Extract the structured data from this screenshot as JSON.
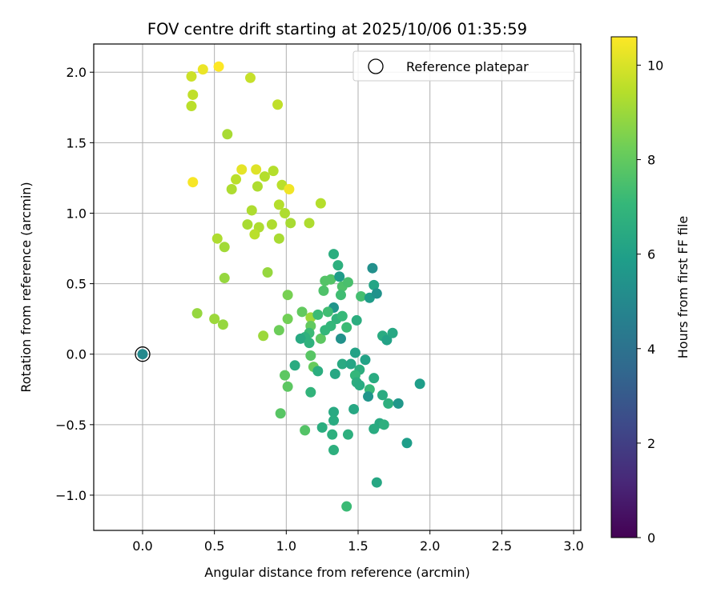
{
  "chart_data": {
    "type": "scatter",
    "title": "FOV centre drift starting at 2025/10/06 01:35:59",
    "xlabel": "Angular distance from reference (arcmin)",
    "ylabel": "Rotation from reference (arcmin)",
    "xlim": [
      -0.34,
      3.05
    ],
    "ylim": [
      -1.25,
      2.2
    ],
    "xticks": [
      0.0,
      0.5,
      1.0,
      1.5,
      2.0,
      2.5,
      3.0
    ],
    "xtick_labels": [
      "0.0",
      "0.5",
      "1.0",
      "1.5",
      "2.0",
      "2.5",
      "3.0"
    ],
    "yticks": [
      -1.0,
      -0.5,
      0.0,
      0.5,
      1.0,
      1.5,
      2.0
    ],
    "ytick_labels": [
      "−1.0",
      "−0.5",
      "0.0",
      "0.5",
      "1.0",
      "1.5",
      "2.0"
    ],
    "grid": true,
    "legend": {
      "placement": "top-right",
      "label": "Reference platepar"
    },
    "reference_point": {
      "x": 0.0,
      "y": 0.0,
      "hours": 5.0
    },
    "colorbar": {
      "label": "Hours from first FF file",
      "range": [
        0,
        10.6
      ],
      "ticks": [
        0,
        2,
        4,
        6,
        8,
        10
      ],
      "tick_labels": [
        "0",
        "2",
        "4",
        "6",
        "8",
        "10"
      ],
      "colormap": "viridis",
      "colors": [
        "#440154",
        "#482878",
        "#3e4989",
        "#31688e",
        "#26828e",
        "#1f9e89",
        "#35b779",
        "#6ece58",
        "#b5de2b",
        "#fde725"
      ]
    },
    "points": [
      {
        "x": 0.53,
        "y": 2.04,
        "h": 10.6
      },
      {
        "x": 0.42,
        "y": 2.02,
        "h": 10.3
      },
      {
        "x": 0.34,
        "y": 1.97,
        "h": 9.8
      },
      {
        "x": 0.75,
        "y": 1.96,
        "h": 9.7
      },
      {
        "x": 0.35,
        "y": 1.84,
        "h": 9.6
      },
      {
        "x": 0.34,
        "y": 1.76,
        "h": 9.5
      },
      {
        "x": 0.94,
        "y": 1.77,
        "h": 9.6
      },
      {
        "x": 0.59,
        "y": 1.56,
        "h": 9.2
      },
      {
        "x": 0.35,
        "y": 1.22,
        "h": 10.5
      },
      {
        "x": 0.69,
        "y": 1.31,
        "h": 10.2
      },
      {
        "x": 0.79,
        "y": 1.31,
        "h": 10.1
      },
      {
        "x": 0.91,
        "y": 1.3,
        "h": 9.4
      },
      {
        "x": 0.65,
        "y": 1.24,
        "h": 9.5
      },
      {
        "x": 0.85,
        "y": 1.26,
        "h": 9.4
      },
      {
        "x": 0.62,
        "y": 1.17,
        "h": 9.3
      },
      {
        "x": 0.8,
        "y": 1.19,
        "h": 9.3
      },
      {
        "x": 0.97,
        "y": 1.2,
        "h": 9.5
      },
      {
        "x": 1.02,
        "y": 1.17,
        "h": 10.4
      },
      {
        "x": 1.24,
        "y": 1.07,
        "h": 9.4
      },
      {
        "x": 0.95,
        "y": 1.06,
        "h": 9.4
      },
      {
        "x": 0.76,
        "y": 1.02,
        "h": 9.3
      },
      {
        "x": 0.99,
        "y": 1.0,
        "h": 9.3
      },
      {
        "x": 0.73,
        "y": 0.92,
        "h": 9.2
      },
      {
        "x": 0.81,
        "y": 0.9,
        "h": 9.3
      },
      {
        "x": 0.9,
        "y": 0.92,
        "h": 9.3
      },
      {
        "x": 1.03,
        "y": 0.93,
        "h": 9.2
      },
      {
        "x": 1.16,
        "y": 0.93,
        "h": 9.3
      },
      {
        "x": 0.78,
        "y": 0.85,
        "h": 9.5
      },
      {
        "x": 0.52,
        "y": 0.82,
        "h": 9.3
      },
      {
        "x": 0.95,
        "y": 0.82,
        "h": 9.2
      },
      {
        "x": 0.57,
        "y": 0.76,
        "h": 9.1
      },
      {
        "x": 0.87,
        "y": 0.58,
        "h": 8.9
      },
      {
        "x": 0.57,
        "y": 0.54,
        "h": 8.9
      },
      {
        "x": 0.38,
        "y": 0.29,
        "h": 8.9
      },
      {
        "x": 0.5,
        "y": 0.25,
        "h": 9.0
      },
      {
        "x": 0.56,
        "y": 0.21,
        "h": 8.9
      },
      {
        "x": 0.84,
        "y": 0.13,
        "h": 9.0
      },
      {
        "x": 1.17,
        "y": 0.26,
        "h": 9.0
      },
      {
        "x": 1.01,
        "y": 0.42,
        "h": 8.4
      },
      {
        "x": 1.01,
        "y": 0.25,
        "h": 8.3
      },
      {
        "x": 0.95,
        "y": 0.17,
        "h": 8.2
      },
      {
        "x": 1.11,
        "y": 0.3,
        "h": 8.0
      },
      {
        "x": 1.17,
        "y": 0.2,
        "h": 8.0
      },
      {
        "x": 1.24,
        "y": 0.11,
        "h": 7.9
      },
      {
        "x": 1.17,
        "y": -0.01,
        "h": 7.8
      },
      {
        "x": 1.19,
        "y": -0.09,
        "h": 8.1
      },
      {
        "x": 0.99,
        "y": -0.15,
        "h": 7.9
      },
      {
        "x": 1.01,
        "y": -0.23,
        "h": 7.9
      },
      {
        "x": 0.96,
        "y": -0.42,
        "h": 7.8
      },
      {
        "x": 1.13,
        "y": -0.54,
        "h": 7.7
      },
      {
        "x": 1.27,
        "y": 0.52,
        "h": 7.7
      },
      {
        "x": 1.31,
        "y": 0.53,
        "h": 7.7
      },
      {
        "x": 1.26,
        "y": 0.45,
        "h": 7.6
      },
      {
        "x": 1.39,
        "y": 0.48,
        "h": 7.6
      },
      {
        "x": 1.43,
        "y": 0.51,
        "h": 7.5
      },
      {
        "x": 1.52,
        "y": 0.41,
        "h": 7.4
      },
      {
        "x": 1.38,
        "y": 0.42,
        "h": 7.3
      },
      {
        "x": 1.36,
        "y": 0.63,
        "h": 6.7
      },
      {
        "x": 1.33,
        "y": 0.71,
        "h": 6.6
      },
      {
        "x": 1.37,
        "y": 0.55,
        "h": 5.8
      },
      {
        "x": 1.33,
        "y": 0.33,
        "h": 5.5
      },
      {
        "x": 1.29,
        "y": 0.3,
        "h": 7.3
      },
      {
        "x": 1.35,
        "y": 0.25,
        "h": 6.9
      },
      {
        "x": 1.39,
        "y": 0.27,
        "h": 7.1
      },
      {
        "x": 1.31,
        "y": 0.2,
        "h": 7.0
      },
      {
        "x": 1.27,
        "y": 0.17,
        "h": 7.0
      },
      {
        "x": 1.42,
        "y": 0.19,
        "h": 7.2
      },
      {
        "x": 1.49,
        "y": 0.24,
        "h": 6.6
      },
      {
        "x": 1.38,
        "y": 0.11,
        "h": 5.4
      },
      {
        "x": 1.22,
        "y": 0.28,
        "h": 7.2
      },
      {
        "x": 1.16,
        "y": 0.15,
        "h": 7.2
      },
      {
        "x": 1.13,
        "y": 0.12,
        "h": 6.8
      },
      {
        "x": 1.1,
        "y": 0.11,
        "h": 6.4
      },
      {
        "x": 1.16,
        "y": 0.08,
        "h": 6.8
      },
      {
        "x": 1.06,
        "y": -0.08,
        "h": 6.5
      },
      {
        "x": 1.22,
        "y": -0.12,
        "h": 6.6
      },
      {
        "x": 1.17,
        "y": -0.27,
        "h": 6.9
      },
      {
        "x": 1.25,
        "y": -0.52,
        "h": 6.6
      },
      {
        "x": 1.33,
        "y": -0.41,
        "h": 6.4
      },
      {
        "x": 1.33,
        "y": -0.47,
        "h": 6.5
      },
      {
        "x": 1.32,
        "y": -0.57,
        "h": 6.7
      },
      {
        "x": 1.33,
        "y": -0.68,
        "h": 6.7
      },
      {
        "x": 1.43,
        "y": -0.57,
        "h": 6.7
      },
      {
        "x": 1.42,
        "y": -1.08,
        "h": 7.2
      },
      {
        "x": 1.34,
        "y": -0.14,
        "h": 6.3
      },
      {
        "x": 1.39,
        "y": -0.07,
        "h": 6.4
      },
      {
        "x": 1.45,
        "y": -0.07,
        "h": 6.2
      },
      {
        "x": 1.48,
        "y": 0.01,
        "h": 6.1
      },
      {
        "x": 1.51,
        "y": -0.11,
        "h": 6.6
      },
      {
        "x": 1.48,
        "y": -0.15,
        "h": 7.0
      },
      {
        "x": 1.49,
        "y": -0.2,
        "h": 6.6
      },
      {
        "x": 1.51,
        "y": -0.22,
        "h": 6.5
      },
      {
        "x": 1.55,
        "y": -0.04,
        "h": 6.1
      },
      {
        "x": 1.58,
        "y": -0.25,
        "h": 7.1
      },
      {
        "x": 1.57,
        "y": -0.3,
        "h": 5.5
      },
      {
        "x": 1.47,
        "y": -0.39,
        "h": 6.3
      },
      {
        "x": 1.61,
        "y": -0.17,
        "h": 6.5
      },
      {
        "x": 1.58,
        "y": 0.4,
        "h": 5.8
      },
      {
        "x": 1.61,
        "y": 0.49,
        "h": 6.2
      },
      {
        "x": 1.63,
        "y": 0.43,
        "h": 5.4
      },
      {
        "x": 1.6,
        "y": 0.61,
        "h": 5.3
      },
      {
        "x": 1.67,
        "y": 0.13,
        "h": 6.5
      },
      {
        "x": 1.7,
        "y": 0.1,
        "h": 6.1
      },
      {
        "x": 1.74,
        "y": 0.15,
        "h": 6.3
      },
      {
        "x": 1.67,
        "y": -0.29,
        "h": 6.5
      },
      {
        "x": 1.71,
        "y": -0.35,
        "h": 6.7
      },
      {
        "x": 1.78,
        "y": -0.35,
        "h": 5.6
      },
      {
        "x": 1.65,
        "y": -0.49,
        "h": 6.4
      },
      {
        "x": 1.61,
        "y": -0.53,
        "h": 6.5
      },
      {
        "x": 1.68,
        "y": -0.5,
        "h": 6.7
      },
      {
        "x": 1.63,
        "y": -0.91,
        "h": 6.3
      },
      {
        "x": 1.84,
        "y": -0.63,
        "h": 5.9
      },
      {
        "x": 1.93,
        "y": -0.21,
        "h": 5.9
      }
    ]
  }
}
